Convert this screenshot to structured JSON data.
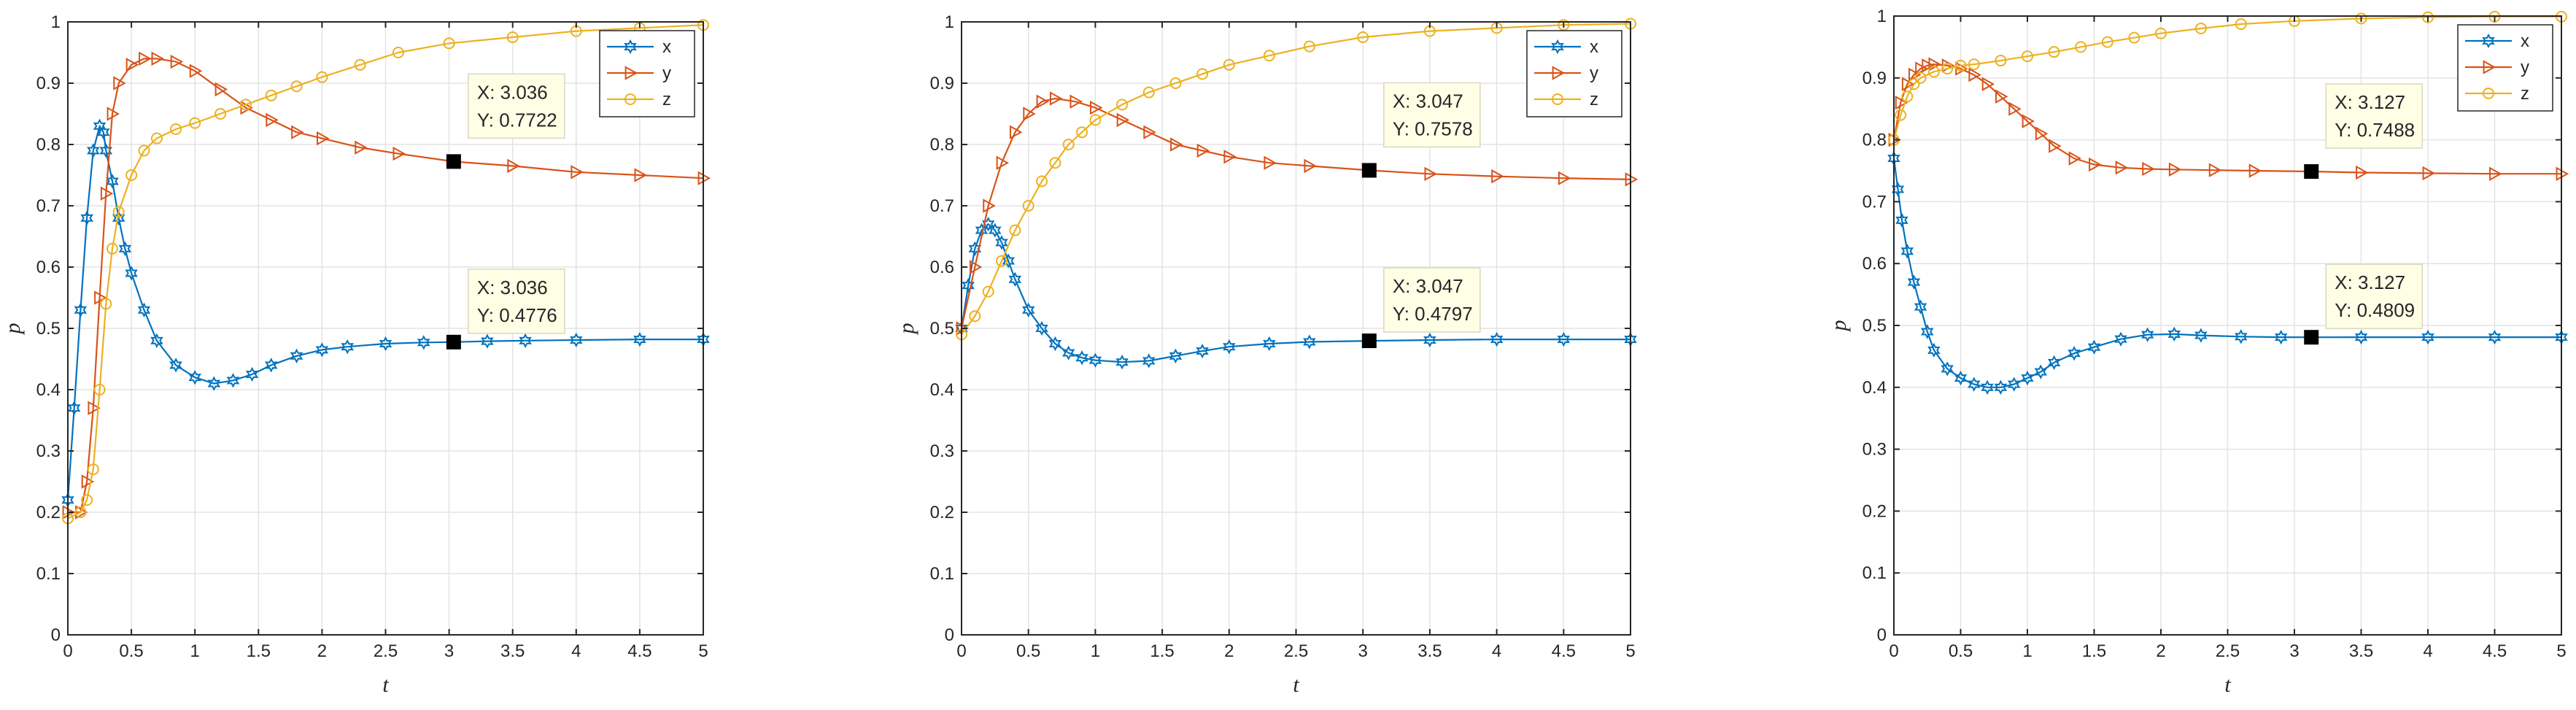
{
  "colors": {
    "x": "#0072BD",
    "y": "#D95319",
    "z": "#EDB120",
    "grid": "#E3E3E3",
    "tip_bg": "#FFFFE6"
  },
  "chart_data": [
    {
      "type": "line",
      "xlabel": "t",
      "ylabel": "p",
      "xlim": [
        0,
        5
      ],
      "ylim": [
        0,
        1
      ],
      "xticks": [
        "0",
        "0.5",
        "1",
        "1.5",
        "2",
        "2.5",
        "3",
        "3.5",
        "4",
        "4.5",
        "5"
      ],
      "yticks": [
        "0",
        "0.1",
        "0.2",
        "0.3",
        "0.4",
        "0.5",
        "0.6",
        "0.7",
        "0.8",
        "0.9",
        "1"
      ],
      "grid": true,
      "legend_position": "top-right",
      "series": [
        {
          "name": "x",
          "marker": "hexagram",
          "x": [
            0,
            0.05,
            0.1,
            0.15,
            0.2,
            0.25,
            0.28,
            0.3,
            0.35,
            0.4,
            0.45,
            0.5,
            0.6,
            0.7,
            0.85,
            1.0,
            1.15,
            1.3,
            1.45,
            1.6,
            1.8,
            2.0,
            2.2,
            2.5,
            2.8,
            3.036,
            3.3,
            3.6,
            4.0,
            4.5,
            5.0
          ],
          "y": [
            0.22,
            0.37,
            0.53,
            0.68,
            0.79,
            0.83,
            0.82,
            0.79,
            0.74,
            0.68,
            0.63,
            0.59,
            0.53,
            0.48,
            0.44,
            0.42,
            0.41,
            0.415,
            0.425,
            0.44,
            0.455,
            0.465,
            0.47,
            0.475,
            0.477,
            0.4776,
            0.479,
            0.48,
            0.481,
            0.482,
            0.482
          ]
        },
        {
          "name": "y",
          "marker": "triangle-right",
          "x": [
            0,
            0.1,
            0.15,
            0.2,
            0.25,
            0.3,
            0.35,
            0.4,
            0.5,
            0.6,
            0.7,
            0.85,
            1.0,
            1.2,
            1.4,
            1.6,
            1.8,
            2.0,
            2.3,
            2.6,
            3.036,
            3.5,
            4.0,
            4.5,
            5.0
          ],
          "y": [
            0.2,
            0.2,
            0.25,
            0.37,
            0.55,
            0.72,
            0.85,
            0.9,
            0.93,
            0.94,
            0.94,
            0.935,
            0.92,
            0.89,
            0.86,
            0.84,
            0.82,
            0.81,
            0.795,
            0.785,
            0.7722,
            0.765,
            0.755,
            0.75,
            0.745
          ]
        },
        {
          "name": "z",
          "marker": "circle",
          "x": [
            0,
            0.1,
            0.15,
            0.2,
            0.25,
            0.3,
            0.35,
            0.4,
            0.5,
            0.6,
            0.7,
            0.85,
            1.0,
            1.2,
            1.4,
            1.6,
            1.8,
            2.0,
            2.3,
            2.6,
            3.0,
            3.5,
            4.0,
            4.5,
            5.0
          ],
          "y": [
            0.19,
            0.2,
            0.22,
            0.27,
            0.4,
            0.54,
            0.63,
            0.69,
            0.75,
            0.79,
            0.81,
            0.825,
            0.835,
            0.85,
            0.865,
            0.88,
            0.895,
            0.91,
            0.93,
            0.95,
            0.965,
            0.975,
            0.985,
            0.99,
            0.995
          ]
        }
      ],
      "datatips": [
        {
          "x_text": "X: 3.036",
          "y_text": "Y: 0.7722",
          "x": 3.036,
          "y": 0.7722
        },
        {
          "x_text": "X: 3.036",
          "y_text": "Y: 0.4776",
          "x": 3.036,
          "y": 0.4776
        }
      ]
    },
    {
      "type": "line",
      "xlabel": "t",
      "ylabel": "p",
      "xlim": [
        0,
        5
      ],
      "ylim": [
        0,
        1
      ],
      "xticks": [
        "0",
        "0.5",
        "1",
        "1.5",
        "2",
        "2.5",
        "3",
        "3.5",
        "4",
        "4.5",
        "5"
      ],
      "yticks": [
        "0",
        "0.1",
        "0.2",
        "0.3",
        "0.4",
        "0.5",
        "0.6",
        "0.7",
        "0.8",
        "0.9",
        "1"
      ],
      "grid": true,
      "legend_position": "top-right",
      "series": [
        {
          "name": "x",
          "marker": "hexagram",
          "x": [
            0,
            0.05,
            0.1,
            0.15,
            0.2,
            0.25,
            0.3,
            0.35,
            0.4,
            0.5,
            0.6,
            0.7,
            0.8,
            0.9,
            1.0,
            1.2,
            1.4,
            1.6,
            1.8,
            2.0,
            2.3,
            2.6,
            3.047,
            3.5,
            4.0,
            4.5,
            5.0
          ],
          "y": [
            0.5,
            0.57,
            0.63,
            0.66,
            0.67,
            0.66,
            0.64,
            0.61,
            0.58,
            0.53,
            0.5,
            0.475,
            0.46,
            0.452,
            0.448,
            0.445,
            0.447,
            0.455,
            0.463,
            0.47,
            0.475,
            0.478,
            0.4797,
            0.481,
            0.482,
            0.482,
            0.482
          ]
        },
        {
          "name": "y",
          "marker": "triangle-right",
          "x": [
            0,
            0.1,
            0.2,
            0.3,
            0.4,
            0.5,
            0.6,
            0.7,
            0.85,
            1.0,
            1.2,
            1.4,
            1.6,
            1.8,
            2.0,
            2.3,
            2.6,
            3.047,
            3.5,
            4.0,
            4.5,
            5.0
          ],
          "y": [
            0.5,
            0.6,
            0.7,
            0.77,
            0.82,
            0.85,
            0.87,
            0.875,
            0.87,
            0.86,
            0.84,
            0.82,
            0.8,
            0.79,
            0.78,
            0.77,
            0.765,
            0.7578,
            0.752,
            0.748,
            0.745,
            0.743
          ]
        },
        {
          "name": "z",
          "marker": "circle",
          "x": [
            0,
            0.1,
            0.2,
            0.3,
            0.4,
            0.5,
            0.6,
            0.7,
            0.8,
            0.9,
            1.0,
            1.2,
            1.4,
            1.6,
            1.8,
            2.0,
            2.3,
            2.6,
            3.0,
            3.5,
            4.0,
            4.5,
            5.0
          ],
          "y": [
            0.49,
            0.52,
            0.56,
            0.61,
            0.66,
            0.7,
            0.74,
            0.77,
            0.8,
            0.82,
            0.84,
            0.865,
            0.885,
            0.9,
            0.915,
            0.93,
            0.945,
            0.96,
            0.975,
            0.985,
            0.99,
            0.995,
            0.997
          ]
        }
      ],
      "datatips": [
        {
          "x_text": "X: 3.047",
          "y_text": "Y: 0.7578",
          "x": 3.047,
          "y": 0.7578
        },
        {
          "x_text": "X: 3.047",
          "y_text": "Y: 0.4797",
          "x": 3.047,
          "y": 0.4797
        }
      ]
    },
    {
      "type": "line",
      "xlabel": "t",
      "ylabel": "p",
      "xlim": [
        0,
        5
      ],
      "ylim": [
        0,
        1
      ],
      "xticks": [
        "0",
        "0.5",
        "1",
        "1.5",
        "2",
        "2.5",
        "3",
        "3.5",
        "4",
        "4.5",
        "5"
      ],
      "yticks": [
        "0",
        "0.1",
        "0.2",
        "0.3",
        "0.4",
        "0.5",
        "0.6",
        "0.7",
        "0.8",
        "0.9",
        "1"
      ],
      "grid": true,
      "legend_position": "top-right",
      "series": [
        {
          "name": "x",
          "marker": "hexagram",
          "x": [
            0,
            0.03,
            0.06,
            0.1,
            0.15,
            0.2,
            0.25,
            0.3,
            0.4,
            0.5,
            0.6,
            0.7,
            0.8,
            0.9,
            1.0,
            1.1,
            1.2,
            1.35,
            1.5,
            1.7,
            1.9,
            2.1,
            2.3,
            2.6,
            2.9,
            3.127,
            3.5,
            4.0,
            4.5,
            5.0
          ],
          "y": [
            0.77,
            0.72,
            0.67,
            0.62,
            0.57,
            0.53,
            0.49,
            0.46,
            0.43,
            0.415,
            0.405,
            0.4,
            0.4,
            0.405,
            0.415,
            0.425,
            0.44,
            0.455,
            0.465,
            0.478,
            0.485,
            0.486,
            0.484,
            0.482,
            0.481,
            0.4809,
            0.481,
            0.481,
            0.481,
            0.481
          ]
        },
        {
          "name": "y",
          "marker": "triangle-right",
          "x": [
            0,
            0.05,
            0.1,
            0.15,
            0.2,
            0.25,
            0.3,
            0.4,
            0.5,
            0.6,
            0.7,
            0.8,
            0.9,
            1.0,
            1.1,
            1.2,
            1.35,
            1.5,
            1.7,
            1.9,
            2.1,
            2.4,
            2.7,
            3.127,
            3.5,
            4.0,
            4.5,
            5.0
          ],
          "y": [
            0.8,
            0.86,
            0.89,
            0.905,
            0.915,
            0.92,
            0.922,
            0.92,
            0.915,
            0.905,
            0.89,
            0.87,
            0.85,
            0.83,
            0.81,
            0.79,
            0.77,
            0.76,
            0.755,
            0.753,
            0.752,
            0.751,
            0.75,
            0.7488,
            0.747,
            0.746,
            0.745,
            0.745
          ]
        },
        {
          "name": "z",
          "marker": "circle",
          "x": [
            0,
            0.05,
            0.1,
            0.15,
            0.2,
            0.3,
            0.4,
            0.5,
            0.6,
            0.8,
            1.0,
            1.2,
            1.4,
            1.6,
            1.8,
            2.0,
            2.3,
            2.6,
            3.0,
            3.5,
            4.0,
            4.5,
            5.0
          ],
          "y": [
            0.8,
            0.84,
            0.87,
            0.89,
            0.9,
            0.91,
            0.915,
            0.92,
            0.922,
            0.928,
            0.935,
            0.942,
            0.95,
            0.958,
            0.965,
            0.972,
            0.98,
            0.987,
            0.992,
            0.996,
            0.998,
            0.999,
            0.999
          ]
        }
      ],
      "datatips": [
        {
          "x_text": "X: 3.127",
          "y_text": "Y: 0.7488",
          "x": 3.127,
          "y": 0.7488
        },
        {
          "x_text": "X: 3.127",
          "y_text": "Y: 0.4809",
          "x": 3.127,
          "y": 0.4809
        }
      ]
    }
  ]
}
